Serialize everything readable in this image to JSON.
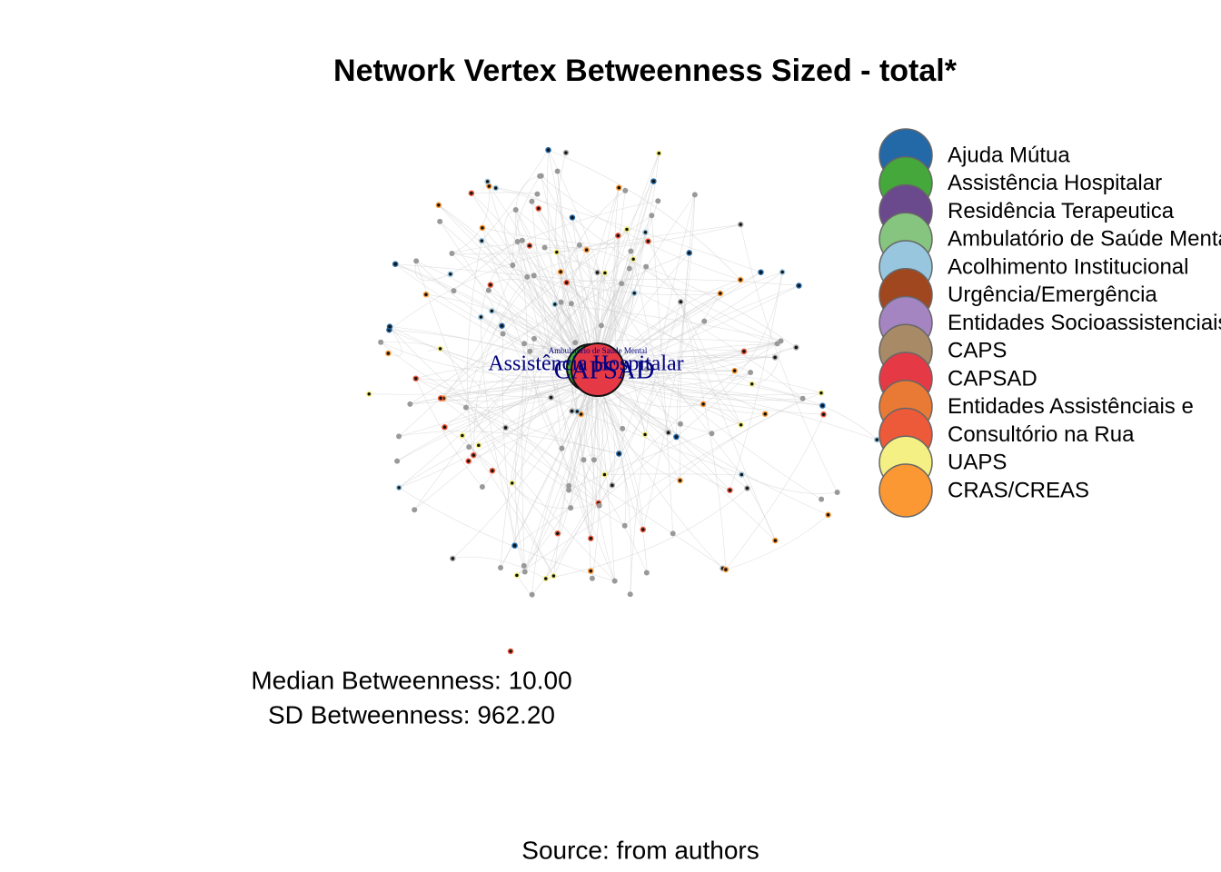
{
  "title": "Network Vertex Betweenness Sized - total*",
  "legend": [
    {
      "name": "Ajuda Mútua",
      "color": "#2369a8"
    },
    {
      "name": "Assistência Hospitalar",
      "color": "#44a83a"
    },
    {
      "name": "Residência Terapeutica",
      "color": "#6a4a8c"
    },
    {
      "name": "Ambulatório de Saúde Mental",
      "color": "#86c57f"
    },
    {
      "name": "Acolhimento Institucional",
      "color": "#98c6df"
    },
    {
      "name": "Urgência/Emergência",
      "color": "#a0471f"
    },
    {
      "name": "Entidades Socioassistenciais",
      "color": "#a485c2"
    },
    {
      "name": "CAPS",
      "color": "#a88a66"
    },
    {
      "name": "CAPSAD",
      "color": "#e63946"
    },
    {
      "name": "Entidades Assistênciais e",
      "color": "#e87a35"
    },
    {
      "name": "Consultório na Rua",
      "color": "#ec5a3a"
    },
    {
      "name": "UAPS",
      "color": "#f5f084"
    },
    {
      "name": "CRAS/CREAS",
      "color": "#fb9834"
    }
  ],
  "node_labels": [
    "Assistência Hospitalar",
    "CAPSAD",
    "Ambulatório de Saúde Mental"
  ],
  "stats": [
    "Median Betweenness: 10.00",
    "SD Betweenness: 962.20"
  ],
  "source": "Source: from authors"
}
